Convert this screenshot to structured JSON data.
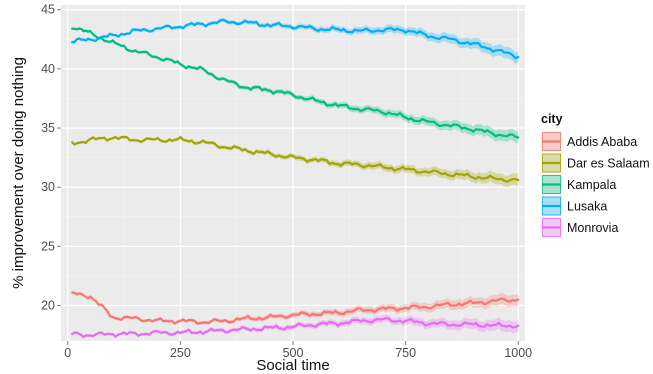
{
  "chart_data": {
    "type": "line",
    "title": "",
    "xlabel": "Social time",
    "ylabel": "% improvement over doing nothing",
    "xlim": [
      -15,
      1015
    ],
    "ylim": [
      17,
      45.4
    ],
    "x_ticks": [
      0,
      250,
      500,
      750,
      1000
    ],
    "x_tick_labels": [
      "0",
      "250",
      "500",
      "750",
      "1000"
    ],
    "y_ticks": [
      20,
      25,
      30,
      35,
      40,
      45
    ],
    "y_tick_labels": [
      "20",
      "25",
      "30",
      "35",
      "40",
      "45"
    ],
    "grid": true,
    "panel_background": "#ebebeb",
    "legend": {
      "title": "city",
      "position": "right"
    },
    "x": [
      10,
      50,
      100,
      150,
      200,
      250,
      300,
      350,
      400,
      450,
      500,
      550,
      600,
      650,
      700,
      750,
      800,
      850,
      900,
      950,
      1000
    ],
    "series": [
      {
        "name": "Addis Ababa",
        "color": "#F8766D",
        "values": [
          21.0,
          20.8,
          19.0,
          18.9,
          18.7,
          18.7,
          18.6,
          18.7,
          18.9,
          19.0,
          19.2,
          19.3,
          19.4,
          19.6,
          19.7,
          19.8,
          19.9,
          20.1,
          20.2,
          20.4,
          20.5
        ]
      },
      {
        "name": "Dar es Salaam",
        "color": "#A3A500",
        "values": [
          33.7,
          34.0,
          34.2,
          34.0,
          34.0,
          34.0,
          33.8,
          33.4,
          33.1,
          32.8,
          32.5,
          32.3,
          32.0,
          31.9,
          31.7,
          31.5,
          31.3,
          31.1,
          30.9,
          30.7,
          30.6
        ]
      },
      {
        "name": "Kampala",
        "color": "#00BF7D",
        "values": [
          43.6,
          43.0,
          42.2,
          41.5,
          41.0,
          40.4,
          39.9,
          39.0,
          38.4,
          38.2,
          37.8,
          37.3,
          36.9,
          36.6,
          36.4,
          35.9,
          35.5,
          35.2,
          34.9,
          34.5,
          34.2
        ]
      },
      {
        "name": "Lusaka",
        "color": "#00B0F6",
        "values": [
          42.3,
          42.5,
          42.8,
          43.2,
          43.4,
          43.6,
          43.8,
          44.0,
          43.9,
          43.7,
          43.6,
          43.4,
          43.3,
          43.2,
          43.3,
          43.3,
          42.8,
          42.5,
          42.1,
          41.6,
          41.0
        ]
      },
      {
        "name": "Monrovia",
        "color": "#E76BF3",
        "values": [
          17.6,
          17.5,
          17.6,
          17.6,
          17.7,
          17.7,
          17.8,
          17.9,
          18.0,
          18.1,
          18.2,
          18.4,
          18.5,
          18.7,
          18.8,
          18.7,
          18.5,
          18.4,
          18.4,
          18.3,
          18.3
        ]
      }
    ]
  }
}
